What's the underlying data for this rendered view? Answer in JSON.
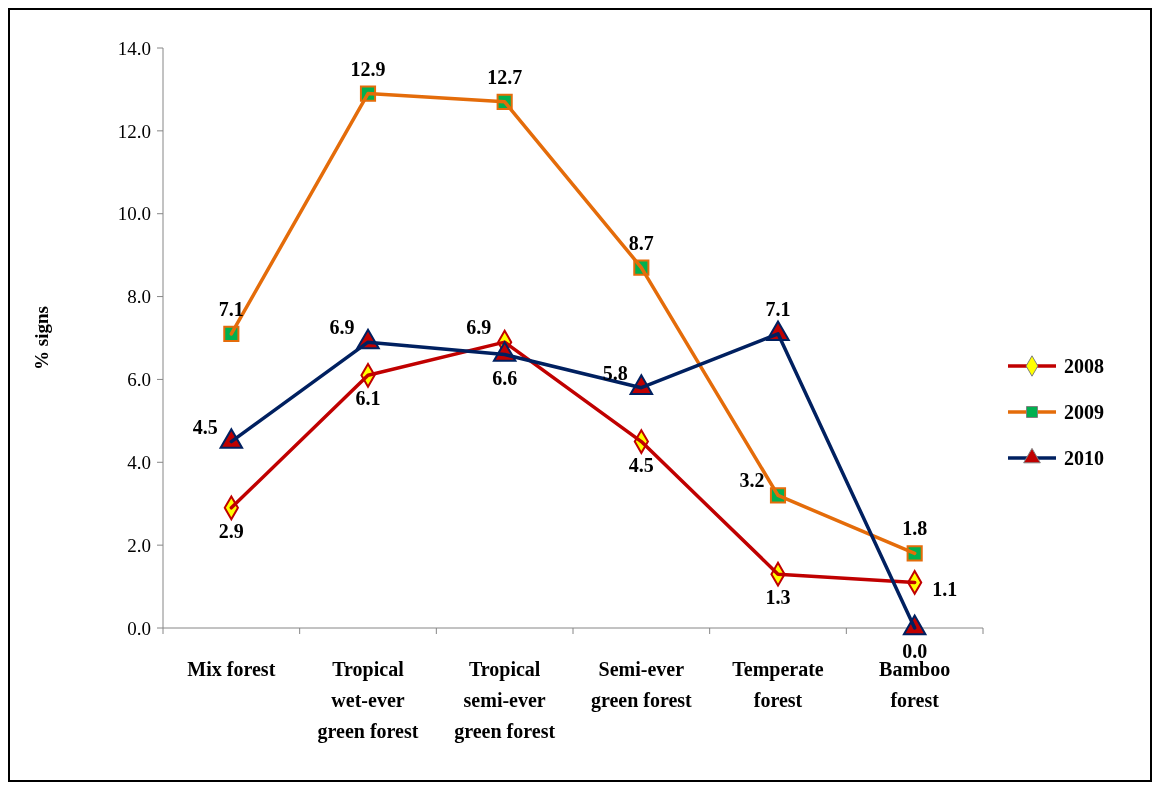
{
  "chart_data": {
    "type": "line",
    "ylabel": "% signs",
    "categories": [
      "Mix forest",
      "Tropical wet-ever green forest",
      "Tropical semi-ever green forest",
      "Semi-ever green forest",
      "Temperate forest",
      "Bamboo forest"
    ],
    "series": [
      {
        "name": "2008",
        "color": "#c00000",
        "marker": "diamond",
        "values": [
          2.9,
          6.1,
          6.9,
          4.5,
          1.3,
          1.1
        ],
        "value_labels": [
          "2.9",
          "6.1",
          "6.9",
          "4.5",
          "1.3",
          "1.1"
        ]
      },
      {
        "name": "2009",
        "color": "#e46c0a",
        "marker": "square",
        "values": [
          7.1,
          12.9,
          12.7,
          8.7,
          3.2,
          1.8
        ],
        "value_labels": [
          "7.1",
          "12.9",
          "12.7",
          "8.7",
          "3.2",
          "1.8"
        ]
      },
      {
        "name": "2010",
        "color": "#002060",
        "marker": "triangle",
        "values": [
          4.5,
          6.9,
          6.6,
          5.8,
          7.1,
          0.0
        ],
        "value_labels": [
          "4.5",
          "6.9",
          "6.6",
          "5.8",
          "7.1",
          "0.0"
        ]
      }
    ],
    "ylim": [
      0,
      14
    ],
    "yticks": [
      {
        "value": 0,
        "label": "0.0"
      },
      {
        "value": 2,
        "label": "2.0"
      },
      {
        "value": 4,
        "label": "4.0"
      },
      {
        "value": 6,
        "label": "6.0"
      },
      {
        "value": 8,
        "label": "8.0"
      },
      {
        "value": 10,
        "label": "10.0"
      },
      {
        "value": 12,
        "label": "12.0"
      },
      {
        "value": 14,
        "label": "14.0"
      }
    ],
    "grid": false,
    "legend": "right"
  }
}
